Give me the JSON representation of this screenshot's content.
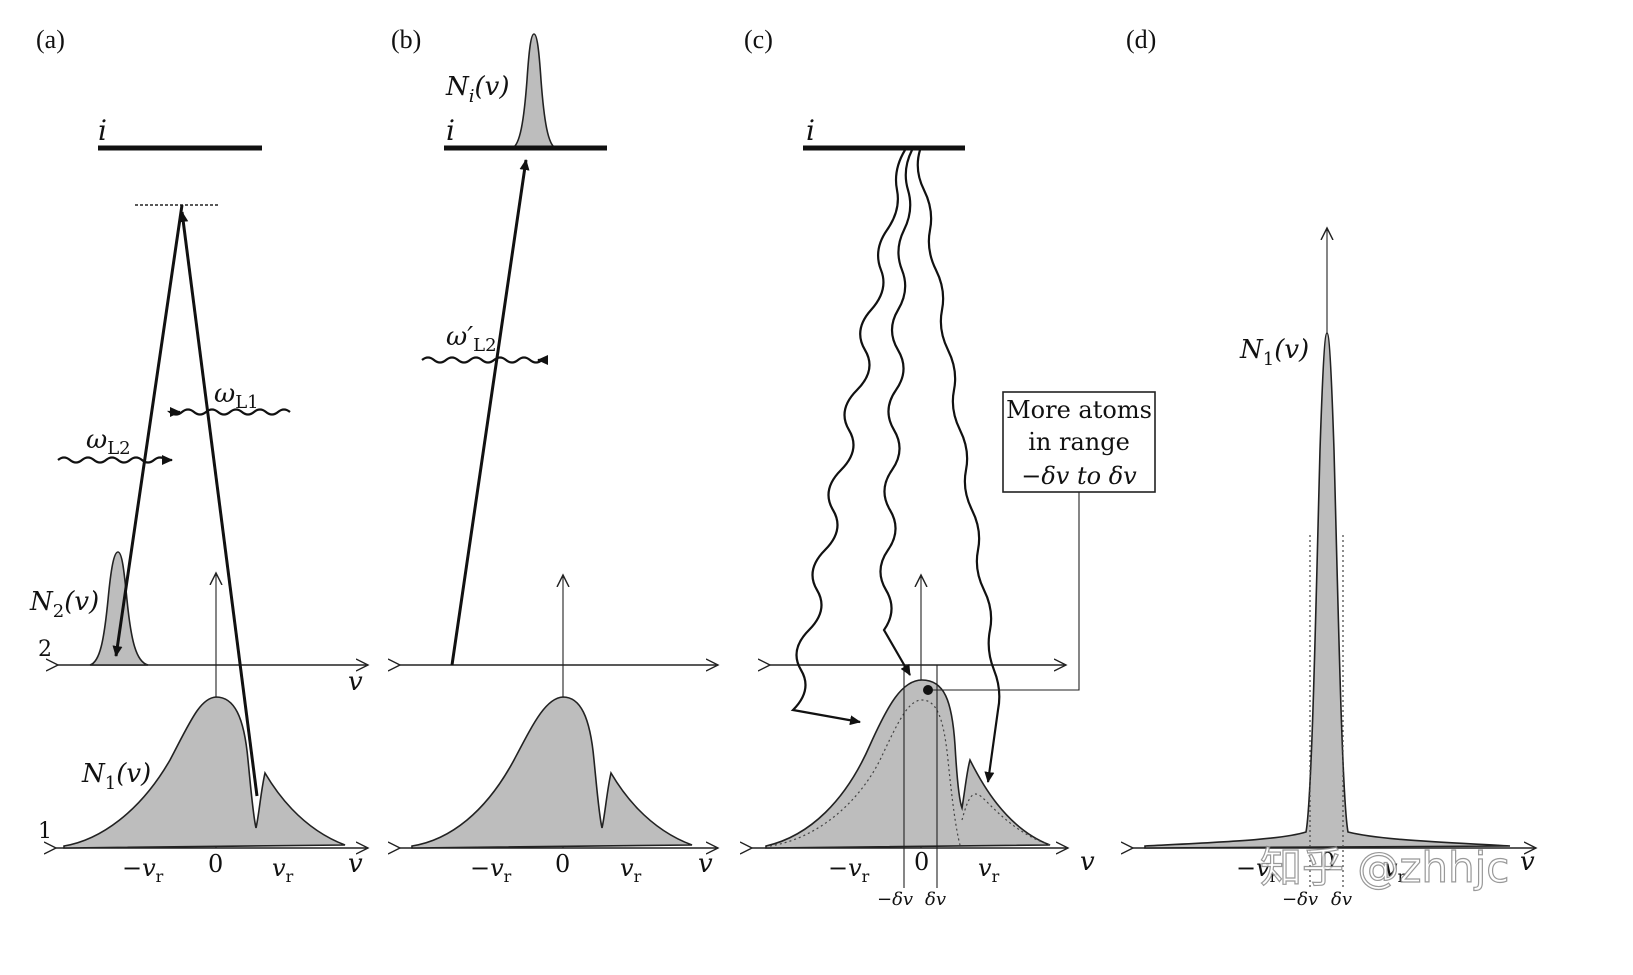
{
  "panels": {
    "a": {
      "label": "(a)",
      "level_i": "i",
      "omega_L1": "ω",
      "omega_L1_sub": "L1",
      "omega_L2": "ω",
      "omega_L2_sub": "L2",
      "N2_label": "N",
      "N2_sub": "2",
      "N2_arg": "(v)",
      "N1_label": "N",
      "N1_sub": "1",
      "N1_arg": "(v)",
      "level_2": "2",
      "level_1": "1",
      "axis_v_upper": "v",
      "axis_v": "v",
      "tick_neg_vr": "−v",
      "tick_zero": "0",
      "tick_pos_vr": "v",
      "tick_sub": "r"
    },
    "b": {
      "label": "(b)",
      "level_i": "i",
      "Ni_label": "N",
      "Ni_sub": "i",
      "Ni_arg": "(v)",
      "omega_prime": "ω′",
      "omega_prime_sub": "L2",
      "axis_v": "v",
      "tick_neg_vr": "−v",
      "tick_zero": "0",
      "tick_pos_vr": "v",
      "tick_sub": "r"
    },
    "c": {
      "label": "(c)",
      "level_i": "i",
      "box_line1": "More atoms",
      "box_line2": "in range",
      "box_line3": "−δv to δv",
      "axis_v": "v",
      "tick_neg_vr": "−v",
      "tick_zero": "0",
      "tick_pos_vr": "v",
      "tick_sub": "r",
      "tick_neg_dv": "−δv",
      "tick_dv": "δv"
    },
    "d": {
      "label": "(d)",
      "N1_label": "N",
      "N1_sub": "1",
      "N1_arg": "(v)",
      "axis_v": "v",
      "tick_neg_vr": "−v",
      "tick_zero": "0",
      "tick_pos_vr": "v",
      "tick_sub": "r",
      "tick_neg_dv": "−δv",
      "tick_dv": "δv"
    }
  },
  "watermark": "知乎 @zhhjc",
  "colors": {
    "fill": "#bdbdbd",
    "line": "#111111"
  }
}
